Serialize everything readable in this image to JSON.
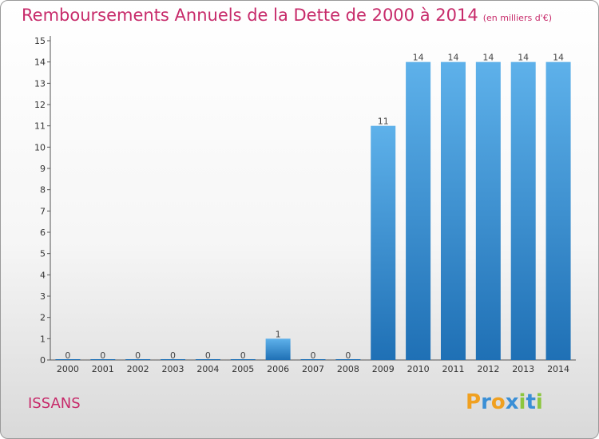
{
  "title": "Remboursements Annuels de la Dette de 2000 à 2014",
  "title_unit": "(en milliers d'€)",
  "city": "ISSANS",
  "logo_letters": [
    "P",
    "r",
    "o",
    "x",
    "i",
    "t",
    "i"
  ],
  "colors": {
    "title": "#c72a6a",
    "bar_top": "#5eb1ea",
    "bar_bottom": "#1f70b5",
    "logo": [
      "#f0a020",
      "#3a8fd6",
      "#f0a020",
      "#3a8fd6",
      "#8cc63f",
      "#3a8fd6",
      "#8cc63f"
    ]
  },
  "chart_data": {
    "type": "bar",
    "title": "Remboursements Annuels de la Dette de 2000 à 2014",
    "categories": [
      "2000",
      "2001",
      "2002",
      "2003",
      "2004",
      "2005",
      "2006",
      "2007",
      "2008",
      "2009",
      "2010",
      "2011",
      "2012",
      "2013",
      "2014"
    ],
    "values": [
      0,
      0,
      0,
      0,
      0,
      0,
      1,
      0,
      0,
      11,
      14,
      14,
      14,
      14,
      14
    ],
    "ylim": [
      0,
      15
    ],
    "yticks": [
      0,
      1,
      2,
      3,
      4,
      5,
      6,
      7,
      8,
      9,
      10,
      11,
      12,
      13,
      14,
      15
    ],
    "grid": false
  }
}
